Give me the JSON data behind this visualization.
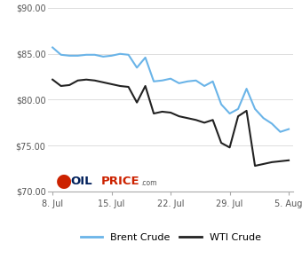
{
  "brent_x": [
    0,
    1,
    2,
    3,
    4,
    5,
    6,
    7,
    8,
    9,
    10,
    11,
    12,
    13,
    14,
    15,
    16,
    17,
    18,
    19,
    20,
    21,
    22,
    23,
    24,
    25,
    26,
    27,
    28
  ],
  "brent_y": [
    85.7,
    84.9,
    84.8,
    84.8,
    84.9,
    84.9,
    84.7,
    84.8,
    85.0,
    84.9,
    83.5,
    84.6,
    82.0,
    82.1,
    82.3,
    81.8,
    82.0,
    82.1,
    81.5,
    82.0,
    79.5,
    78.5,
    79.0,
    81.2,
    79.0,
    78.0,
    77.4,
    76.5,
    76.8
  ],
  "wti_x": [
    0,
    1,
    2,
    3,
    4,
    5,
    6,
    7,
    8,
    9,
    10,
    11,
    12,
    13,
    14,
    15,
    16,
    17,
    18,
    19,
    20,
    21,
    22,
    23,
    24,
    25,
    26,
    27,
    28
  ],
  "wti_y": [
    82.2,
    81.5,
    81.6,
    82.1,
    82.2,
    82.1,
    81.9,
    81.7,
    81.5,
    81.4,
    79.7,
    81.5,
    78.5,
    78.7,
    78.6,
    78.2,
    78.0,
    77.8,
    77.5,
    77.8,
    75.3,
    74.8,
    78.2,
    78.8,
    72.8,
    73.0,
    73.2,
    73.3,
    73.4
  ],
  "brent_color": "#6ab4e8",
  "wti_color": "#222222",
  "ylim": [
    70.0,
    90.0
  ],
  "yticks": [
    70.0,
    75.0,
    80.0,
    85.0,
    90.0
  ],
  "xtick_positions": [
    0,
    7,
    14,
    21,
    28
  ],
  "xtick_labels": [
    "8. Jul",
    "15. Jul",
    "22. Jul",
    "29. Jul",
    "5. Aug"
  ],
  "grid_color": "#dddddd",
  "background_color": "#ffffff",
  "legend_brent": "Brent Crude",
  "legend_wti": "WTI Crude"
}
